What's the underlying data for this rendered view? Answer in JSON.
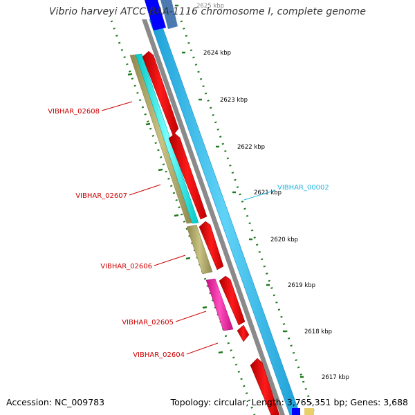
{
  "title": "Vibrio harveyi ATCC BAA-1116 chromosome I, complete genome",
  "footer": {
    "accession": "Accession: NC_009783",
    "summary": "Topology: circular; Length: 3,765,351 bp; Genes: 3,688"
  },
  "colors": {
    "cds_red": "#ff0000",
    "trna_cyan": "#00ffff",
    "gc_olive": "#b5ad6d",
    "magenta": "#ff1aa8",
    "backbone_blue": "#3cc3f0",
    "backbone_gray": "#8a8a8a",
    "tick_green": "#1f7a1f",
    "label_red": "#cc0000",
    "label_cyan": "#22b4e0",
    "blue_feature": "#0000ff",
    "steel_feature": "#4a7ab0"
  },
  "ticks": [
    {
      "label": "2625 kbp"
    },
    {
      "label": "2624 kbp"
    },
    {
      "label": "2623 kbp"
    },
    {
      "label": "2622 kbp"
    },
    {
      "label": "2621 kbp"
    },
    {
      "label": "2620 kbp"
    },
    {
      "label": "2619 kbp"
    },
    {
      "label": "2618 kbp"
    },
    {
      "label": "2617 kbp"
    }
  ],
  "gene_labels": [
    {
      "name": "VIBHAR_02608",
      "color": "red"
    },
    {
      "name": "VIBHAR_02607",
      "color": "red"
    },
    {
      "name": "VIBHAR_02606",
      "color": "red"
    },
    {
      "name": "VIBHAR_02605",
      "color": "red"
    },
    {
      "name": "VIBHAR_02604",
      "color": "red"
    },
    {
      "name": "VIBHAR_00002",
      "color": "cyan"
    }
  ]
}
